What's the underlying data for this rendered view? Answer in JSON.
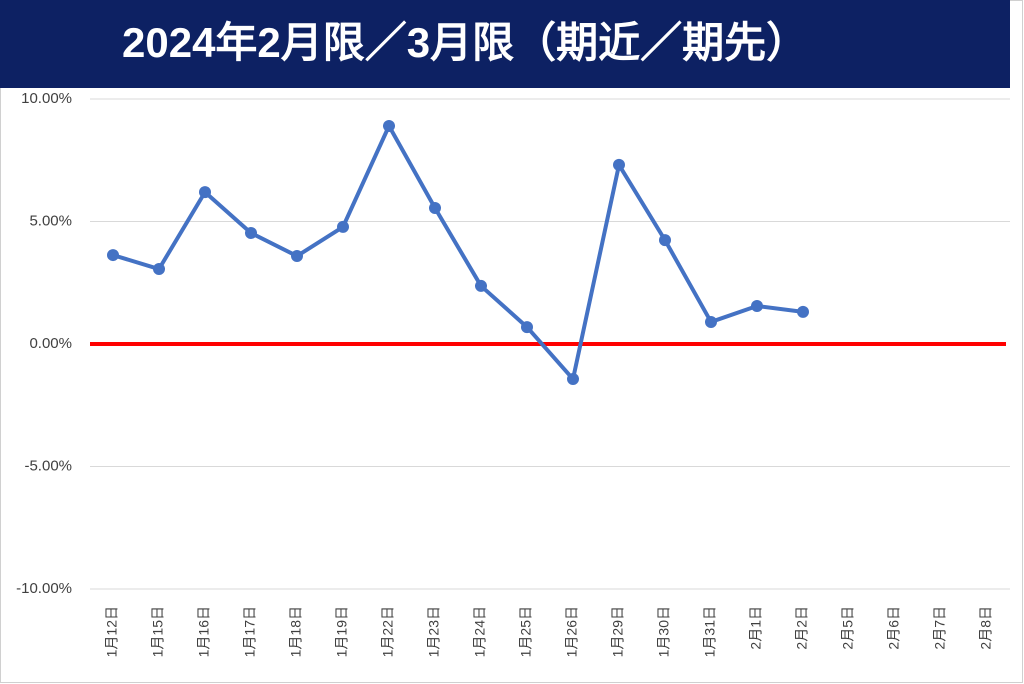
{
  "chart_data": {
    "type": "line",
    "title": "2024年2月限／3月限（期近／期先）",
    "categories": [
      "1月12日",
      "1月15日",
      "1月16日",
      "1月17日",
      "1月18日",
      "1月19日",
      "1月22日",
      "1月23日",
      "1月24日",
      "1月25日",
      "1月26日",
      "1月29日",
      "1月30日",
      "1月31日",
      "2月1日",
      "2月2日",
      "2月5日",
      "2月6日",
      "2月7日",
      "2月8日"
    ],
    "series": [
      {
        "name": "期近／期先",
        "color": "#4472c4",
        "values": [
          3.63,
          3.06,
          6.2,
          4.53,
          3.59,
          4.78,
          8.9,
          5.55,
          2.37,
          0.69,
          -1.43,
          7.31,
          4.24,
          0.9,
          1.55,
          1.31,
          null,
          null,
          null,
          null
        ]
      }
    ],
    "ylim": [
      -10,
      10
    ],
    "yticks": [
      {
        "value": -10,
        "label": "-10.00%"
      },
      {
        "value": -5,
        "label": "-5.00%"
      },
      {
        "value": 0,
        "label": "0.00%"
      },
      {
        "value": 5,
        "label": "5.00%"
      },
      {
        "value": 10,
        "label": "10.00%"
      }
    ],
    "grid": true,
    "zero_line_color": "#ff0000"
  }
}
